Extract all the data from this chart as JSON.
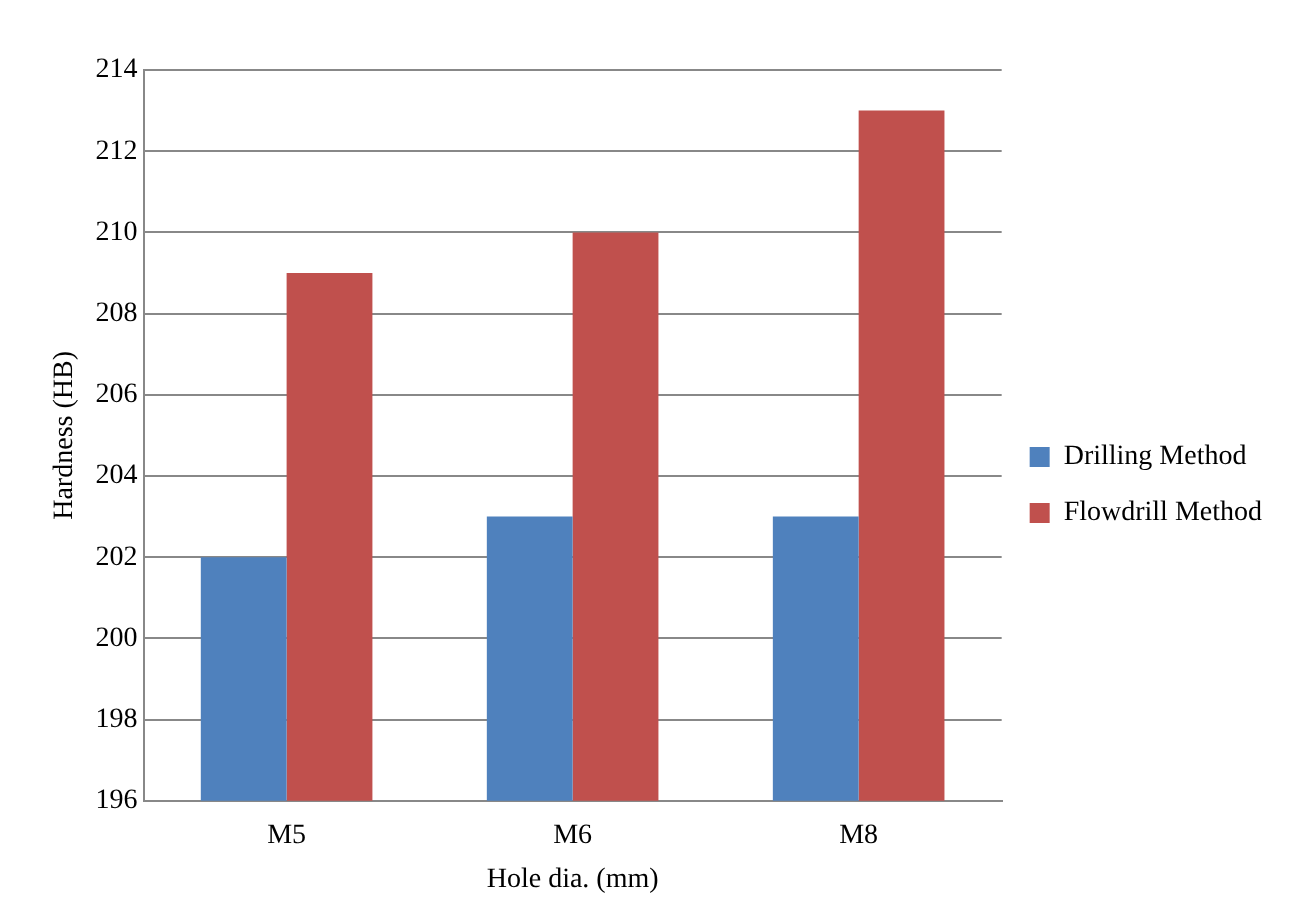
{
  "chart_data": {
    "type": "bar",
    "xlabel": "Hole dia. (mm)",
    "ylabel": "Hardness (HB)",
    "categories": [
      "M5",
      "M6",
      "M8"
    ],
    "series": [
      {
        "name": "Drilling Method",
        "color": "#4f81bd",
        "values": [
          202,
          203,
          203
        ]
      },
      {
        "name": "Flowdrill Method",
        "color": "#c0504d",
        "values": [
          209,
          210,
          213
        ]
      }
    ],
    "ylim": [
      196,
      214
    ],
    "yticks": [
      196,
      198,
      200,
      202,
      204,
      206,
      208,
      210,
      212,
      214
    ],
    "grid": "y",
    "legend": "right"
  }
}
